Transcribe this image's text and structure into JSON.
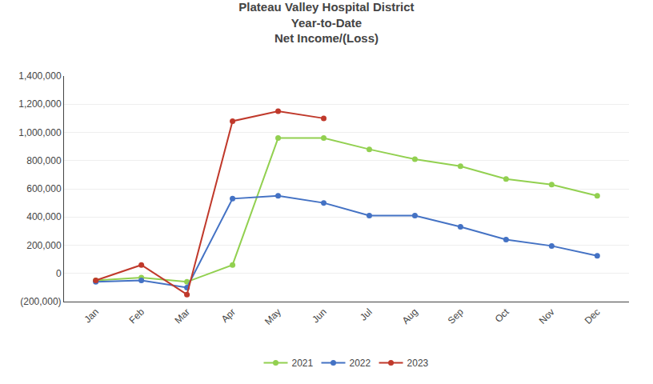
{
  "chart_data": {
    "type": "line",
    "title": "Plateau Valley Hospital District\nYear-to-Date\nNet Income/(Loss)",
    "categories": [
      "Jan",
      "Feb",
      "Mar",
      "Apr",
      "May",
      "Jun",
      "Jul",
      "Aug",
      "Sep",
      "Oct",
      "Nov",
      "Dec"
    ],
    "series": [
      {
        "name": "2021",
        "color": "#92d050",
        "marker": "circle",
        "values": [
          -50000,
          -30000,
          -60000,
          60000,
          960000,
          960000,
          880000,
          810000,
          760000,
          670000,
          630000,
          550000
        ]
      },
      {
        "name": "2022",
        "color": "#4472c4",
        "marker": "circle",
        "values": [
          -60000,
          -50000,
          -100000,
          530000,
          550000,
          500000,
          410000,
          410000,
          330000,
          240000,
          195000,
          125000
        ]
      },
      {
        "name": "2023",
        "color": "#c0392b",
        "marker": "circle",
        "values": [
          -50000,
          60000,
          -150000,
          1080000,
          1150000,
          1100000,
          null,
          null,
          null,
          null,
          null,
          null
        ]
      }
    ],
    "ylim": [
      -200000,
      1400000
    ],
    "yticks": [
      {
        "value": -200000,
        "label": "(200,000)"
      },
      0,
      {
        "value": 200000,
        "label": "200,000"
      },
      {
        "value": 400000,
        "label": "400,000"
      },
      {
        "value": 600000,
        "label": "600,000"
      },
      {
        "value": 800000,
        "label": "800,000"
      },
      {
        "value": 1000000,
        "label": "1,000,000"
      },
      {
        "value": 1200000,
        "label": "1,200,000"
      },
      {
        "value": 1400000,
        "label": "1,400,000"
      }
    ],
    "grid": "y",
    "legend": "bottom"
  }
}
